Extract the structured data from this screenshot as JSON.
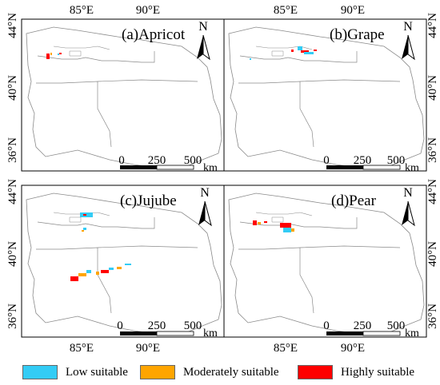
{
  "panels": [
    {
      "id": "a",
      "title": "(a)Apricot"
    },
    {
      "id": "b",
      "title": "(b)Grape"
    },
    {
      "id": "c",
      "title": "(c)Jujube"
    },
    {
      "id": "d",
      "title": "(d)Pear"
    }
  ],
  "axes": {
    "top_lon": [
      "85°E",
      "90°E"
    ],
    "bottom_lon": [
      "85°E",
      "90°E"
    ],
    "left_lat_upper": [
      "44°N",
      "40°N",
      "36°N"
    ],
    "right_lat_upper": [
      "44°N",
      "40°N",
      "36°N"
    ],
    "left_lat_lower": [
      "44°N",
      "40°N",
      "36°N"
    ],
    "right_lat_lower": [
      "44°N",
      "40°N",
      "36°N"
    ]
  },
  "north_label": "N",
  "scale": {
    "ticks": [
      "0",
      "250",
      "500"
    ],
    "unit": "km"
  },
  "legend": [
    {
      "label": "Low suitable",
      "color": "#33ccf5"
    },
    {
      "label": "Moderately suitable",
      "color": "#ffa500"
    },
    {
      "label": "Highly suitable",
      "color": "#ff0000"
    }
  ],
  "colors": {
    "outline": "#8a8a8a",
    "low": "#33ccf5",
    "moderate": "#ffa500",
    "high": "#ff0000"
  }
}
